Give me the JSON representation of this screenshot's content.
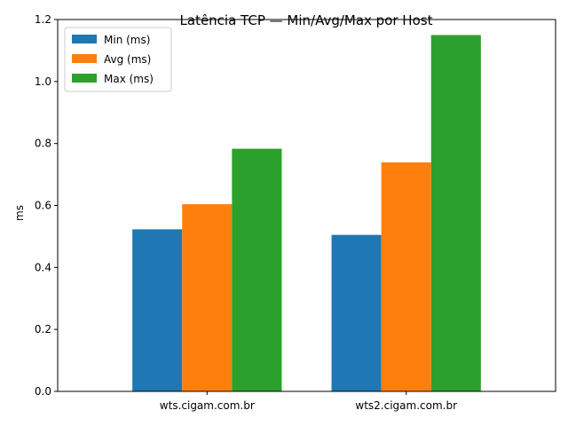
{
  "chart_data": {
    "type": "bar",
    "title": "Latência TCP — Min/Avg/Max por Host",
    "xlabel": "",
    "ylabel": "ms",
    "categories": [
      "wts.cigam.com.br",
      "wts2.cigam.com.br"
    ],
    "series": [
      {
        "name": "Min (ms)",
        "color": "#1f77b4",
        "values": [
          0.523,
          0.505
        ]
      },
      {
        "name": "Avg (ms)",
        "color": "#ff7f0e",
        "values": [
          0.604,
          0.739
        ]
      },
      {
        "name": "Max (ms)",
        "color": "#2ca02c",
        "values": [
          0.783,
          1.15
        ]
      }
    ],
    "ylim": [
      0,
      1.2
    ],
    "yticks": [
      "0.0",
      "0.2",
      "0.4",
      "0.6",
      "0.8",
      "1.0",
      "1.2"
    ],
    "grid": false,
    "legend_position": "top-left"
  }
}
